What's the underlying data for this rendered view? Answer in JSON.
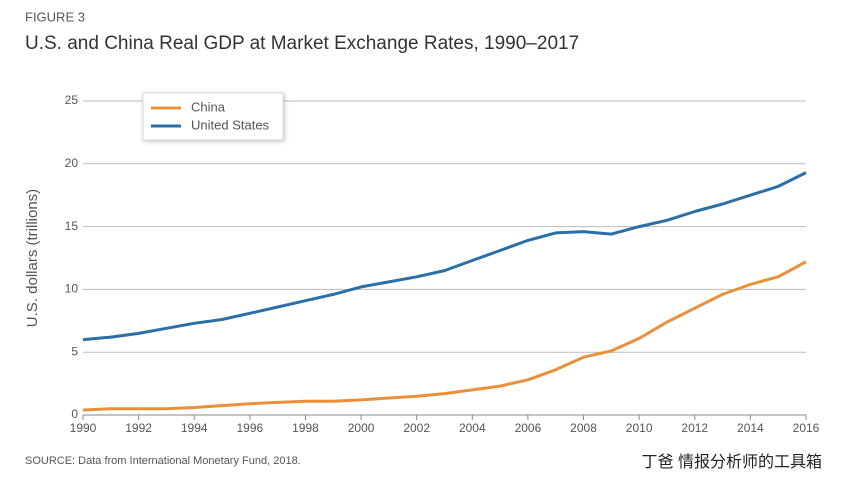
{
  "chart_data": {
    "type": "line",
    "figure_label": "FIGURE 3",
    "title": "U.S. and China Real GDP at Market Exchange Rates, 1990–2017",
    "y_label": "U.S. dollars (trillions)",
    "source": "SOURCE: Data from International Monetary Fund, 2018.",
    "watermark": "丁爸 情报分析师的工具箱",
    "x": [
      1990,
      1991,
      1992,
      1993,
      1994,
      1995,
      1996,
      1997,
      1998,
      1999,
      2000,
      2001,
      2002,
      2003,
      2004,
      2005,
      2006,
      2007,
      2008,
      2009,
      2010,
      2011,
      2012,
      2013,
      2014,
      2015,
      2016
    ],
    "series": [
      {
        "name": "China",
        "color": "#e8913a",
        "values": [
          0.4,
          0.5,
          0.5,
          0.5,
          0.6,
          0.75,
          0.9,
          1.0,
          1.1,
          1.1,
          1.2,
          1.35,
          1.5,
          1.7,
          2.0,
          2.3,
          2.8,
          3.6,
          4.6,
          5.1,
          6.1,
          7.4,
          8.5,
          9.6,
          10.4,
          11.0,
          12.2
        ]
      },
      {
        "name": "United States",
        "color": "#2a6fa5",
        "values": [
          6.0,
          6.2,
          6.5,
          6.9,
          7.3,
          7.6,
          8.1,
          8.6,
          9.1,
          9.6,
          10.2,
          10.6,
          11.0,
          11.5,
          12.3,
          13.1,
          13.9,
          14.5,
          14.6,
          14.4,
          15.0,
          15.5,
          16.2,
          16.8,
          17.5,
          18.2,
          19.3
        ]
      }
    ],
    "xlim": [
      1990,
      2016
    ],
    "xticks": [
      1990,
      1992,
      1994,
      1996,
      1998,
      2000,
      2002,
      2004,
      2006,
      2008,
      2010,
      2012,
      2014,
      2016
    ],
    "ylim": [
      0,
      25
    ],
    "yticks": [
      0,
      5,
      10,
      15,
      20,
      25
    ],
    "grid": true,
    "legend": "upper-left"
  }
}
